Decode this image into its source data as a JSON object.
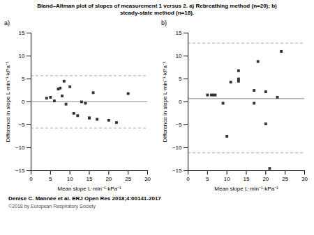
{
  "title": "Bland–Altman plot of slopes of measurement 1 versus 2. a) Rebreathing method (n=20); b)\nsteady-state method (n=18).",
  "annotations": [
    "Denise C. Mannée et al. ERJ Open Res 2018;4:00141-2017",
    "©2018 by European Respiratory Society"
  ],
  "chart_data": [
    {
      "type": "scatter",
      "title": "a)",
      "x": [
        4,
        5,
        6,
        7,
        7.5,
        8,
        8.5,
        9,
        10,
        11,
        12,
        13,
        14,
        15,
        15,
        16,
        17,
        20,
        22,
        25
      ],
      "values": [
        0.8,
        1.0,
        0.2,
        2.8,
        3.0,
        1.3,
        4.5,
        -0.5,
        3.3,
        -2.5,
        -3.0,
        0.0,
        -0.3,
        -3.5,
        -3.5,
        2.0,
        -3.8,
        -4.0,
        -4.5,
        1.8
      ],
      "color": "#333333",
      "marker": "square",
      "reference_lines": [
        {
          "value": 0.0,
          "color": "#888888",
          "line_style": "solid"
        },
        {
          "value": 5.7,
          "color": "#aaaaaa",
          "line_style": "dashed"
        },
        {
          "value": -5.7,
          "color": "#aaaaaa",
          "line_style": "dashed"
        }
      ],
      "xlim": [
        0,
        30
      ],
      "ylim": [
        -15,
        15
      ],
      "xticks": [
        0,
        5,
        10,
        15,
        20,
        25,
        30
      ],
      "yticks": [
        -15,
        -10,
        -5,
        0,
        5,
        10,
        15
      ],
      "xlabel": "Mean slope L·min⁻¹·kPa⁻¹",
      "ylabel": "Difference in slope L·min⁻¹·kPa⁻¹",
      "grid": false
    },
    {
      "type": "scatter",
      "title": "b)",
      "x": [
        5,
        6,
        6.5,
        7,
        9,
        10,
        11,
        13,
        13,
        13,
        17,
        17,
        18,
        20,
        20,
        23,
        24,
        21
      ],
      "values": [
        1.5,
        1.5,
        1.5,
        1.5,
        -0.3,
        -7.5,
        4.3,
        5.0,
        4.5,
        6.8,
        2.5,
        -0.3,
        8.8,
        -4.8,
        2.2,
        1.0,
        11.0,
        -14.5
      ],
      "color": "#333333",
      "marker": "square",
      "reference_lines": [
        {
          "value": 0.7,
          "color": "#888888",
          "line_style": "solid"
        },
        {
          "value": 12.8,
          "color": "#aaaaaa",
          "line_style": "dashed"
        },
        {
          "value": -11.1,
          "color": "#aaaaaa",
          "line_style": "dashed"
        }
      ],
      "xlim": [
        0,
        30
      ],
      "ylim": [
        -15,
        15
      ],
      "xticks": [
        0,
        5,
        10,
        15,
        20,
        25,
        30
      ],
      "yticks": [
        -15,
        -10,
        -5,
        0,
        5,
        10,
        15
      ],
      "xlabel": "Mean slope L·min⁻¹·kPa⁻¹",
      "ylabel": "Difference in slope L·min⁻¹·kPa⁻¹",
      "grid": false
    }
  ]
}
